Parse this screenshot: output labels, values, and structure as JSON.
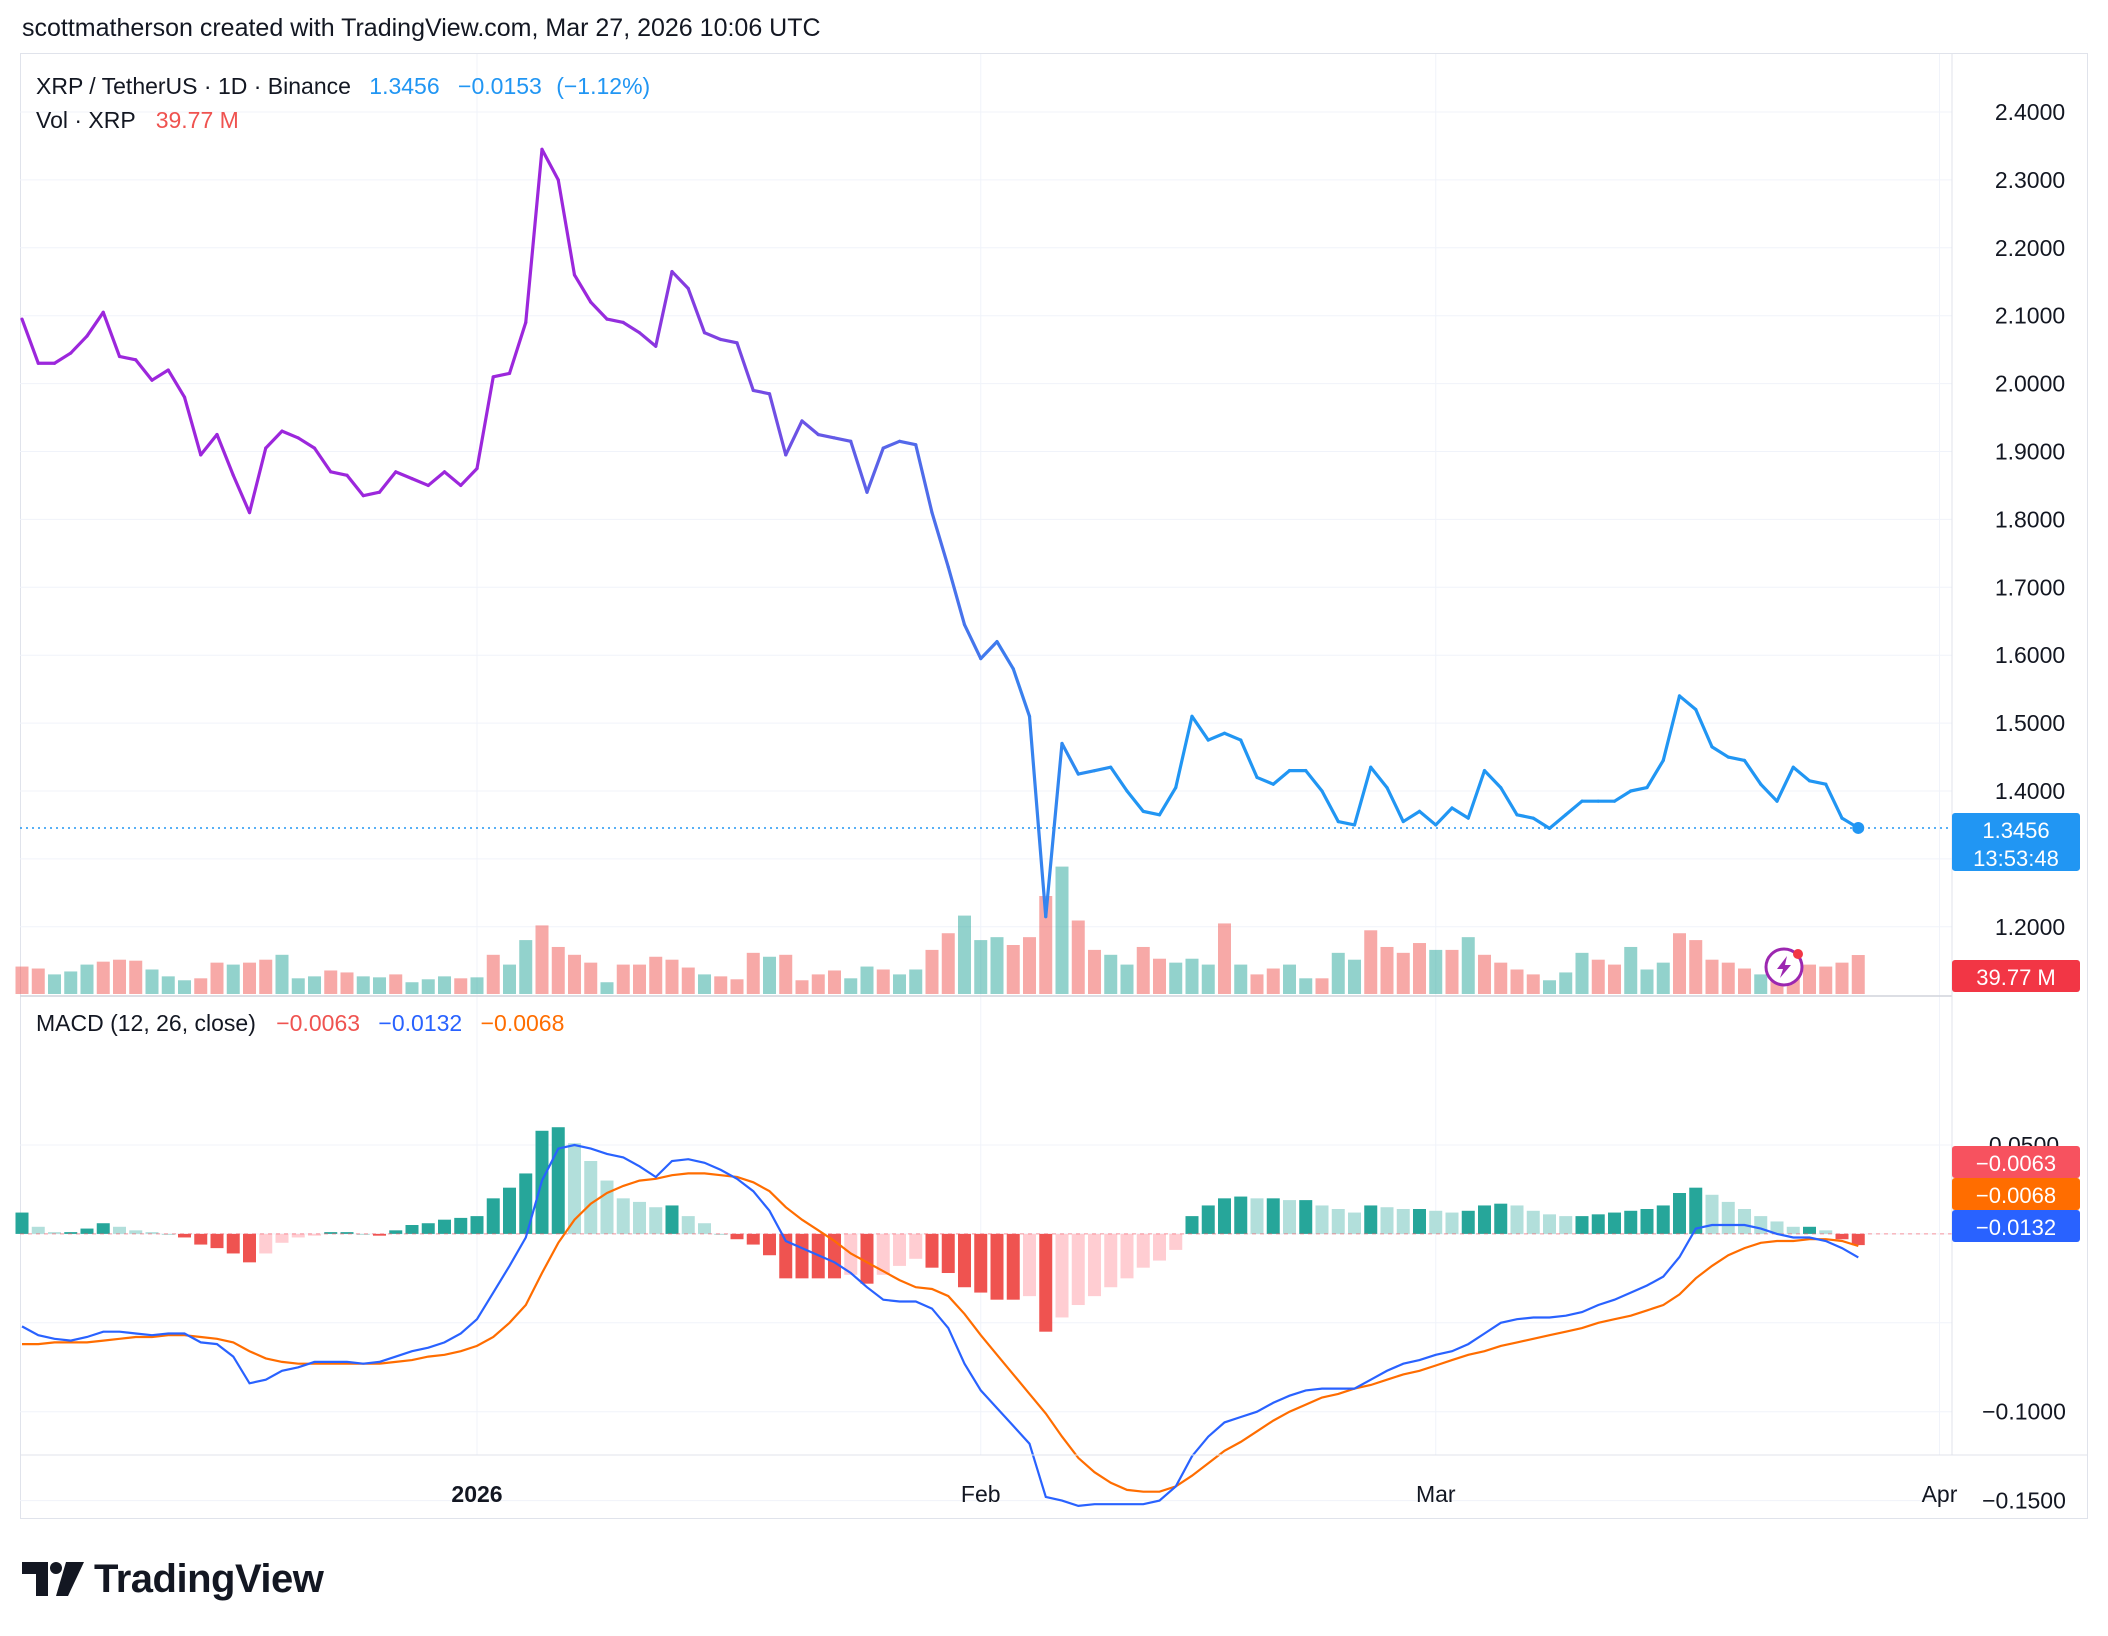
{
  "header": {
    "attribution": "scottmatherson created with TradingView.com, Mar 27, 2026 10:06 UTC"
  },
  "legend": {
    "symbol": "XRP / TetherUS · 1D · Binance",
    "price": "1.3456",
    "change": "−0.0153",
    "change_pct": "(−1.12%)",
    "vol_label": "Vol · XRP",
    "vol_value": "39.77 M",
    "macd_label": "MACD (12, 26, close)",
    "macd_hist": "−0.0063",
    "macd_line": "−0.0132",
    "macd_signal": "−0.0068"
  },
  "price_axis": {
    "ticks": [
      "2.4000",
      "2.3000",
      "2.2000",
      "2.1000",
      "2.0000",
      "1.9000",
      "1.8000",
      "1.7000",
      "1.6000",
      "1.5000",
      "1.4000",
      "1.2000"
    ],
    "tick_values": [
      2.4,
      2.3,
      2.2,
      2.1,
      2.0,
      1.9,
      1.8,
      1.7,
      1.6,
      1.5,
      1.4,
      1.2
    ],
    "last_price_label": "1.3456",
    "countdown_label": "13:53:48",
    "volume_label": "39.77 M"
  },
  "macd_axis": {
    "ticks": [
      "0.0500",
      "−0.1000",
      "−0.1500"
    ],
    "tick_values": [
      0.05,
      -0.1,
      -0.15
    ],
    "hist_label": "−0.0063",
    "signal_label": "−0.0068",
    "macd_label": "−0.0132"
  },
  "time_axis": {
    "labels": [
      "2026",
      "Feb",
      "Mar",
      "Apr"
    ],
    "label_day_index": [
      28,
      59,
      87,
      118
    ]
  },
  "brand": {
    "name": "TradingView"
  },
  "colors": {
    "price_line_early": "#9c27b0",
    "price_line_late": "#2196f3",
    "up": "#26a69a",
    "down": "#ef5350",
    "up_light": "#b2dfdb",
    "down_light": "#ffcdd2",
    "macd_line": "#2962ff",
    "signal_line": "#ff6d00",
    "volume_badge": "#f23645",
    "price_badge": "#2196f3"
  },
  "chart_data": [
    {
      "type": "line",
      "title": "XRP / TetherUS · 1D · Binance",
      "x_start": "2025-12-04",
      "x_end": "2026-03-27",
      "x_unit": "daily close, consecutive days from x_start",
      "ylim": [
        1.1,
        2.45
      ],
      "series": [
        {
          "name": "XRP / TetherUS",
          "values": [
            2.095,
            2.03,
            2.03,
            2.045,
            2.07,
            2.105,
            2.04,
            2.035,
            2.005,
            2.02,
            1.98,
            1.895,
            1.925,
            1.865,
            1.81,
            1.905,
            1.93,
            1.92,
            1.905,
            1.87,
            1.865,
            1.835,
            1.84,
            1.87,
            1.86,
            1.85,
            1.87,
            1.85,
            1.875,
            2.01,
            2.015,
            2.09,
            2.345,
            2.3,
            2.16,
            2.12,
            2.095,
            2.09,
            2.075,
            2.055,
            2.165,
            2.14,
            2.075,
            2.065,
            2.06,
            1.99,
            1.985,
            1.895,
            1.945,
            1.925,
            1.92,
            1.915,
            1.84,
            1.905,
            1.915,
            1.91,
            1.81,
            1.73,
            1.645,
            1.595,
            1.62,
            1.58,
            1.51,
            1.215,
            1.47,
            1.425,
            1.43,
            1.435,
            1.4,
            1.37,
            1.365,
            1.405,
            1.51,
            1.475,
            1.485,
            1.475,
            1.42,
            1.41,
            1.43,
            1.43,
            1.4,
            1.355,
            1.35,
            1.435,
            1.405,
            1.355,
            1.37,
            1.35,
            1.375,
            1.36,
            1.43,
            1.405,
            1.365,
            1.36,
            1.345,
            1.365,
            1.385,
            1.385,
            1.385,
            1.4,
            1.405,
            1.445,
            1.54,
            1.52,
            1.465,
            1.45,
            1.445,
            1.41,
            1.385,
            1.435,
            1.415,
            1.41,
            1.36,
            1.3456
          ]
        }
      ]
    },
    {
      "type": "bar",
      "title": "Vol · XRP",
      "x_start": "2025-12-04",
      "unit": "M",
      "series": [
        {
          "name": "Volume",
          "values": [
            28,
            26,
            20,
            23,
            30,
            33,
            35,
            34,
            25,
            18,
            14,
            16,
            32,
            30,
            32,
            35,
            40,
            16,
            18,
            24,
            22,
            18,
            17,
            20,
            12,
            15,
            18,
            16,
            17,
            40,
            30,
            55,
            70,
            48,
            40,
            32,
            12,
            30,
            30,
            38,
            35,
            27,
            20,
            18,
            15,
            42,
            38,
            40,
            14,
            20,
            24,
            16,
            28,
            25,
            20,
            25,
            45,
            62,
            80,
            55,
            58,
            50,
            58,
            100,
            130,
            75,
            45,
            40,
            30,
            48,
            36,
            32,
            36,
            30,
            72,
            30,
            20,
            26,
            30,
            16,
            16,
            42,
            35,
            65,
            48,
            42,
            52,
            45,
            45,
            58,
            40,
            32,
            25,
            20,
            14,
            22,
            42,
            35,
            30,
            48,
            25,
            32,
            62,
            55,
            35,
            32,
            26,
            20,
            26,
            40,
            30,
            28,
            32,
            39.77
          ],
          "direction": [
            -1,
            -1,
            1,
            1,
            1,
            -1,
            -1,
            -1,
            1,
            1,
            1,
            -1,
            -1,
            1,
            -1,
            -1,
            1,
            1,
            1,
            -1,
            -1,
            1,
            1,
            -1,
            1,
            1,
            1,
            -1,
            1,
            -1,
            1,
            1,
            -1,
            -1,
            -1,
            -1,
            1,
            -1,
            -1,
            -1,
            -1,
            -1,
            1,
            -1,
            -1,
            -1,
            1,
            -1,
            -1,
            -1,
            -1,
            1,
            1,
            -1,
            1,
            1,
            -1,
            -1,
            1,
            1,
            1,
            -1,
            -1,
            -1,
            1,
            -1,
            -1,
            1,
            1,
            -1,
            -1,
            1,
            1,
            1,
            -1,
            1,
            -1,
            -1,
            1,
            1,
            -1,
            1,
            1,
            -1,
            -1,
            -1,
            -1,
            1,
            -1,
            1,
            -1,
            -1,
            -1,
            -1,
            1,
            1,
            1,
            -1,
            -1,
            1,
            1,
            1,
            -1,
            -1,
            -1,
            -1,
            -1,
            1,
            -1,
            -1,
            -1,
            -1
          ]
        }
      ]
    },
    {
      "type": "line",
      "title": "MACD (12, 26, close)",
      "x_start": "2025-12-04",
      "ylim": [
        -0.175,
        0.07
      ],
      "series": [
        {
          "name": "Histogram",
          "values": [
            0.012,
            0.004,
            0.001,
            0.001,
            0.003,
            0.006,
            0.004,
            0.002,
            0.001,
            0,
            -0.002,
            -0.006,
            -0.008,
            -0.011,
            -0.016,
            -0.011,
            -0.005,
            -0.002,
            -0.001,
            0.001,
            0.001,
            0,
            -0.001,
            0.002,
            0.005,
            0.006,
            0.008,
            0.009,
            0.01,
            0.02,
            0.026,
            0.034,
            0.058,
            0.06,
            0.051,
            0.041,
            0.03,
            0.02,
            0.018,
            0.015,
            0.016,
            0.01,
            0.006,
            0,
            -0.003,
            -0.006,
            -0.012,
            -0.025,
            -0.025,
            -0.025,
            -0.025,
            -0.023,
            -0.028,
            -0.023,
            -0.018,
            -0.014,
            -0.019,
            -0.022,
            -0.03,
            -0.033,
            -0.037,
            -0.037,
            -0.035,
            -0.055,
            -0.047,
            -0.04,
            -0.035,
            -0.03,
            -0.025,
            -0.019,
            -0.015,
            -0.009,
            0.01,
            0.016,
            0.02,
            0.021,
            0.02,
            0.02,
            0.019,
            0.019,
            0.016,
            0.014,
            0.012,
            0.016,
            0.015,
            0.014,
            0.014,
            0.013,
            0.012,
            0.013,
            0.016,
            0.017,
            0.016,
            0.013,
            0.011,
            0.01,
            0.01,
            0.011,
            0.012,
            0.013,
            0.014,
            0.016,
            0.023,
            0.026,
            0.022,
            0.018,
            0.014,
            0.01,
            0.007,
            0.004,
            0.004,
            0.002,
            -0.003,
            -0.0063
          ]
        },
        {
          "name": "MACD",
          "values": [
            -0.052,
            -0.057,
            -0.059,
            -0.06,
            -0.058,
            -0.055,
            -0.055,
            -0.056,
            -0.057,
            -0.056,
            -0.056,
            -0.061,
            -0.062,
            -0.069,
            -0.084,
            -0.082,
            -0.077,
            -0.075,
            -0.072,
            -0.072,
            -0.072,
            -0.073,
            -0.072,
            -0.069,
            -0.066,
            -0.064,
            -0.061,
            -0.056,
            -0.048,
            -0.033,
            -0.018,
            -0.002,
            0.03,
            0.048,
            0.05,
            0.048,
            0.045,
            0.043,
            0.038,
            0.032,
            0.041,
            0.042,
            0.04,
            0.036,
            0.031,
            0.024,
            0.013,
            -0.004,
            -0.008,
            -0.012,
            -0.016,
            -0.022,
            -0.03,
            -0.037,
            -0.038,
            -0.038,
            -0.042,
            -0.053,
            -0.073,
            -0.088,
            -0.098,
            -0.108,
            -0.118,
            -0.148,
            -0.15,
            -0.153,
            -0.152,
            -0.152,
            -0.152,
            -0.152,
            -0.15,
            -0.142,
            -0.125,
            -0.114,
            -0.106,
            -0.103,
            -0.1,
            -0.095,
            -0.091,
            -0.088,
            -0.087,
            -0.087,
            -0.087,
            -0.082,
            -0.077,
            -0.073,
            -0.071,
            -0.068,
            -0.066,
            -0.062,
            -0.056,
            -0.05,
            -0.048,
            -0.047,
            -0.047,
            -0.046,
            -0.044,
            -0.04,
            -0.037,
            -0.033,
            -0.029,
            -0.024,
            -0.013,
            0.003,
            0.005,
            0.005,
            0.005,
            0.003,
            0,
            -0.002,
            -0.002,
            -0.004,
            -0.008,
            -0.0132
          ]
        },
        {
          "name": "Signal",
          "values": [
            -0.062,
            -0.062,
            -0.061,
            -0.061,
            -0.061,
            -0.06,
            -0.059,
            -0.058,
            -0.058,
            -0.057,
            -0.057,
            -0.058,
            -0.059,
            -0.061,
            -0.066,
            -0.07,
            -0.072,
            -0.073,
            -0.073,
            -0.073,
            -0.073,
            -0.073,
            -0.073,
            -0.072,
            -0.071,
            -0.069,
            -0.068,
            -0.066,
            -0.063,
            -0.058,
            -0.05,
            -0.04,
            -0.022,
            -0.005,
            0.008,
            0.017,
            0.023,
            0.027,
            0.03,
            0.031,
            0.033,
            0.034,
            0.034,
            0.033,
            0.032,
            0.029,
            0.024,
            0.015,
            0.008,
            0.002,
            -0.004,
            -0.011,
            -0.016,
            -0.021,
            -0.026,
            -0.03,
            -0.031,
            -0.035,
            -0.045,
            -0.057,
            -0.068,
            -0.079,
            -0.09,
            -0.101,
            -0.114,
            -0.126,
            -0.134,
            -0.14,
            -0.144,
            -0.145,
            -0.145,
            -0.142,
            -0.136,
            -0.129,
            -0.122,
            -0.117,
            -0.111,
            -0.105,
            -0.1,
            -0.096,
            -0.092,
            -0.09,
            -0.087,
            -0.085,
            -0.082,
            -0.079,
            -0.077,
            -0.074,
            -0.071,
            -0.068,
            -0.066,
            -0.063,
            -0.061,
            -0.059,
            -0.057,
            -0.055,
            -0.053,
            -0.05,
            -0.048,
            -0.046,
            -0.043,
            -0.04,
            -0.034,
            -0.025,
            -0.018,
            -0.012,
            -0.008,
            -0.005,
            -0.004,
            -0.004,
            -0.003,
            -0.003,
            -0.004,
            -0.0068
          ]
        }
      ]
    }
  ]
}
